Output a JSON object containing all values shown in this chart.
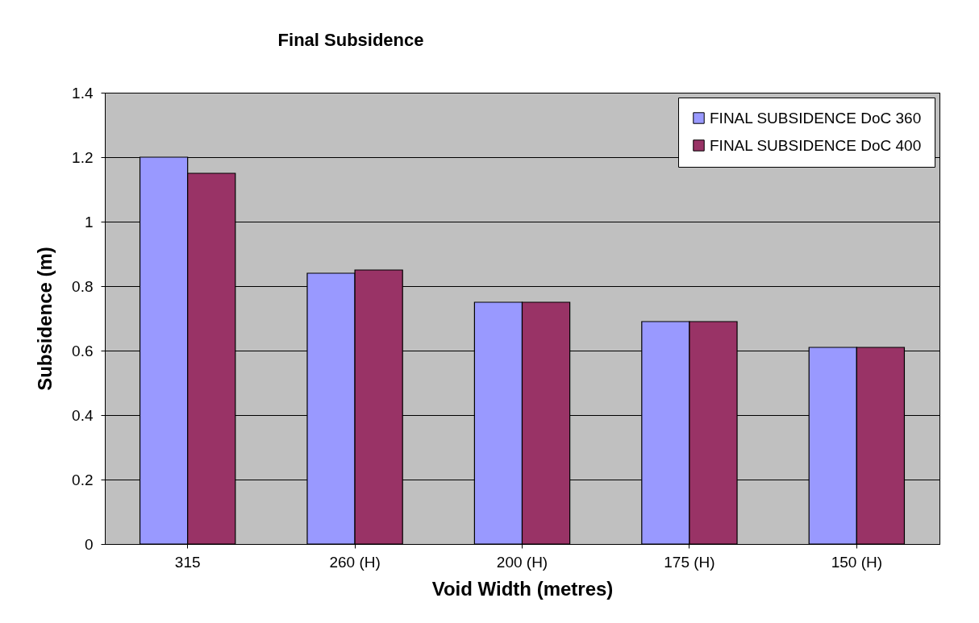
{
  "chart_data": {
    "type": "bar",
    "title": "Final Subsidence",
    "xlabel": "Void Width (metres)",
    "ylabel": "Subsidence (m)",
    "categories": [
      "315",
      "260 (H)",
      "200 (H)",
      "175 (H)",
      "150 (H)"
    ],
    "series": [
      {
        "name": "FINAL SUBSIDENCE DoC 360",
        "color": "#9999ff",
        "values": [
          1.2,
          0.84,
          0.75,
          0.69,
          0.61
        ]
      },
      {
        "name": "FINAL SUBSIDENCE DoC 400",
        "color": "#993366",
        "values": [
          1.15,
          0.85,
          0.75,
          0.69,
          0.61
        ]
      }
    ],
    "ylim": [
      0,
      1.4
    ],
    "yticks": [
      0,
      0.2,
      0.4,
      0.6,
      0.8,
      1,
      1.2,
      1.4
    ],
    "grid": "y",
    "legend": "top right"
  }
}
